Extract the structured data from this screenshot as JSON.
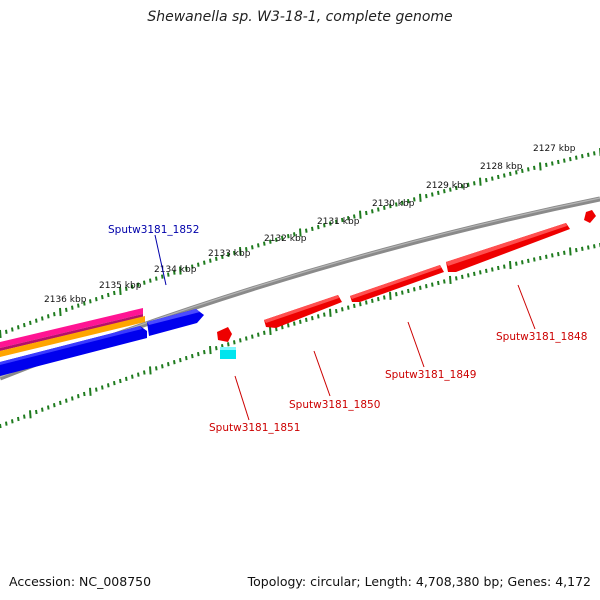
{
  "title": "Shewanella sp. W3-18-1, complete genome",
  "footer": {
    "accession": "Accession: NC_008750",
    "summary": "Topology: circular; Length: 4,708,380 bp; Genes: 4,172"
  },
  "colors": {
    "backbone": "#7a7a7a",
    "tick": "#1e7b1e",
    "forward_gene": "#ff0000",
    "reverse_gene": "#0000ee",
    "label_forward": "#cc0000",
    "label_reverse": "#0000aa",
    "cyan_feature": "#00e5ee",
    "magenta_band": "#ff1493",
    "orange_band": "#ffa500"
  },
  "scale": {
    "unit_suffix": " kbp",
    "labeled_positions_kbp": [
      2127,
      2128,
      2129,
      2130,
      2131,
      2132,
      2133,
      2134,
      2135,
      2136
    ]
  },
  "genes": [
    {
      "id": "Sputw3181_1848",
      "label": "Sputw3181_1848",
      "strand": "forward",
      "color": "red"
    },
    {
      "id": "Sputw3181_1849",
      "label": "Sputw3181_1849",
      "strand": "forward",
      "color": "red"
    },
    {
      "id": "Sputw3181_1850",
      "label": "Sputw3181_1850",
      "strand": "forward",
      "color": "red"
    },
    {
      "id": "Sputw3181_1851",
      "label": "Sputw3181_1851",
      "strand": "forward",
      "color": "red"
    },
    {
      "id": "Sputw3181_1852",
      "label": "Sputw3181_1852",
      "strand": "reverse",
      "color": "blue"
    }
  ]
}
